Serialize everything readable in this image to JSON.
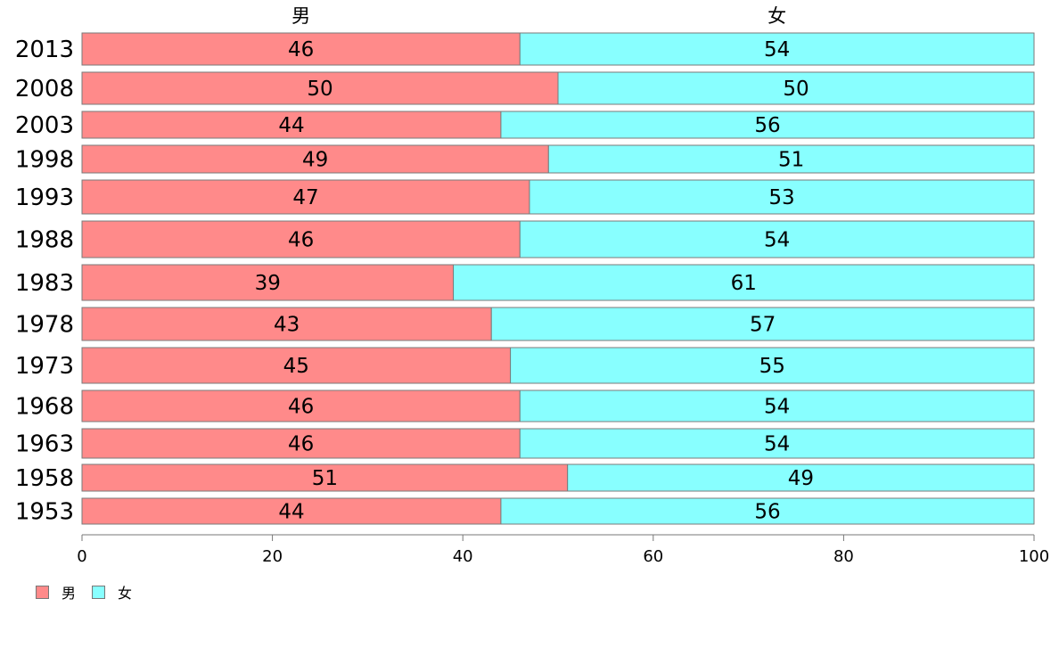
{
  "chart_data": {
    "type": "bar",
    "orientation": "horizontal",
    "stacked": true,
    "categories": [
      "2013",
      "2008",
      "2003",
      "1998",
      "1993",
      "1988",
      "1983",
      "1978",
      "1973",
      "1968",
      "1963",
      "1958",
      "1953"
    ],
    "series": [
      {
        "name": "男",
        "color": "#ff8a8a",
        "values": [
          46,
          50,
          44,
          49,
          47,
          46,
          39,
          43,
          45,
          46,
          46,
          51,
          44
        ]
      },
      {
        "name": "女",
        "color": "#88ffff",
        "values": [
          54,
          50,
          56,
          51,
          53,
          54,
          61,
          57,
          55,
          54,
          54,
          49,
          56
        ]
      }
    ],
    "column_headers": [
      "男",
      "女"
    ],
    "xlim": [
      0,
      100
    ],
    "xticks": [
      0,
      20,
      40,
      60,
      80,
      100
    ],
    "legend": "bottom-left",
    "grid": false
  }
}
